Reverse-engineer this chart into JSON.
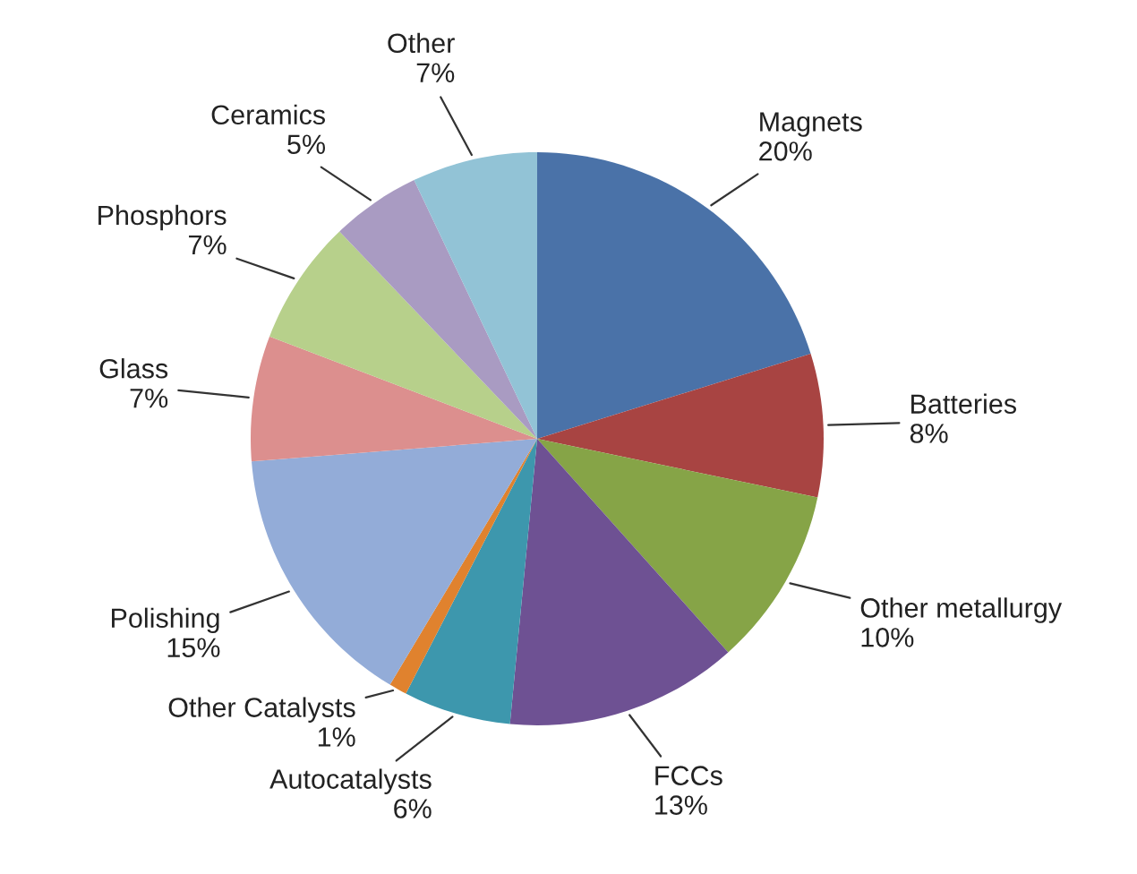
{
  "chart_data": {
    "type": "pie",
    "categories": [
      "Magnets",
      "Batteries",
      "Other metallurgy",
      "FCCs",
      "Autocatalysts",
      "Other Catalysts",
      "Polishing",
      "Glass",
      "Phosphors",
      "Ceramics",
      "Other"
    ],
    "values": [
      20,
      8,
      10,
      13,
      6,
      1,
      15,
      7,
      7,
      5,
      7
    ],
    "value_labels": [
      "20%",
      "8%",
      "10%",
      "13%",
      "6%",
      "1%",
      "15%",
      "7%",
      "7%",
      "5%",
      "7%"
    ],
    "colors": [
      "#4a72a8",
      "#a84442",
      "#86a447",
      "#6e5193",
      "#3d97ad",
      "#e0822e",
      "#93acd8",
      "#dc8f8e",
      "#b7d08b",
      "#a99bc2",
      "#92c3d6"
    ],
    "legend": false
  }
}
